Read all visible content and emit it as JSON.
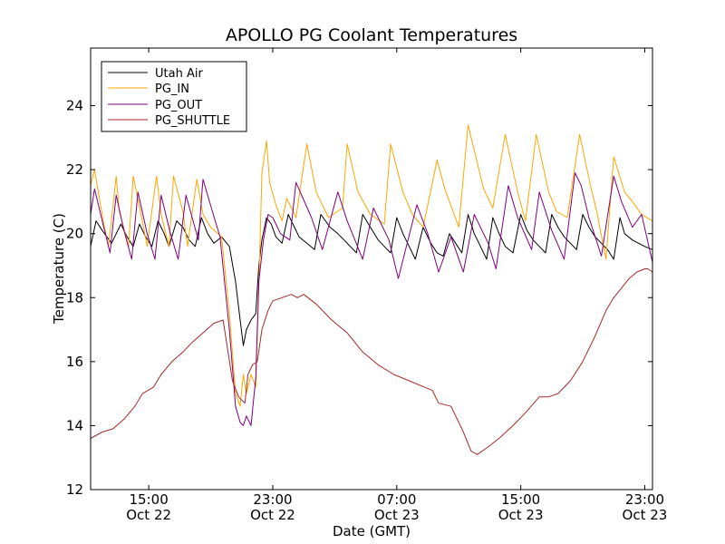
{
  "chart_data": {
    "type": "line",
    "title": "APOLLO PG Coolant Temperatures",
    "xlabel": "Date (GMT)",
    "ylabel": "Temperature (C)",
    "xlim": [
      11.25,
      47.5
    ],
    "ylim": [
      12,
      25.8
    ],
    "x_unit": "hours since 2012-10-22 00:00 GMT",
    "yticks": [
      12,
      14,
      16,
      18,
      20,
      22,
      24
    ],
    "xticks": [
      {
        "x": 15,
        "line1": "15:00",
        "line2": "Oct 22"
      },
      {
        "x": 23,
        "line1": "23:00",
        "line2": "Oct 22"
      },
      {
        "x": 31,
        "line1": "07:00",
        "line2": "Oct 23"
      },
      {
        "x": 39,
        "line1": "15:00",
        "line2": "Oct 23"
      },
      {
        "x": 47,
        "line1": "23:00",
        "line2": "Oct 23"
      }
    ],
    "legend_position": "top-left",
    "series": [
      {
        "name": "Utah Air",
        "color": "#000000",
        "x": [
          11.25,
          11.6,
          12.0,
          12.6,
          13.2,
          13.6,
          14.0,
          14.4,
          14.8,
          15.2,
          15.6,
          16.0,
          16.3,
          16.8,
          17.2,
          17.6,
          18.0,
          18.4,
          18.8,
          19.2,
          19.7,
          20.2,
          20.6,
          20.9,
          21.1,
          21.3,
          21.6,
          21.9,
          22.1,
          22.3,
          22.6,
          22.9,
          23.2,
          23.6,
          24.0,
          24.4,
          24.7,
          25.2,
          25.7,
          26.1,
          26.7,
          27.2,
          27.6,
          28.0,
          28.4,
          28.8,
          29.3,
          29.8,
          30.2,
          30.6,
          31.0,
          31.4,
          31.8,
          32.2,
          32.7,
          33.2,
          33.6,
          34.0,
          34.4,
          34.8,
          35.2,
          35.6,
          36.0,
          36.4,
          36.8,
          37.2,
          37.6,
          38.0,
          38.5,
          39.0,
          39.4,
          39.8,
          40.2,
          40.6,
          41.0,
          41.4,
          41.8,
          42.2,
          42.6,
          43.0,
          43.4,
          43.8,
          44.2,
          44.6,
          45.0,
          45.4,
          45.7,
          46.2,
          46.6,
          47.0,
          47.5
        ],
        "y": [
          19.6,
          20.4,
          20.1,
          19.7,
          20.3,
          19.9,
          19.6,
          20.3,
          19.9,
          19.6,
          20.4,
          20.0,
          19.6,
          20.4,
          20.2,
          19.8,
          19.6,
          20.5,
          20.0,
          19.7,
          19.9,
          19.6,
          18.5,
          17.3,
          16.5,
          17.0,
          17.3,
          17.5,
          19.0,
          19.8,
          20.5,
          20.3,
          19.9,
          19.7,
          20.6,
          20.2,
          19.9,
          19.7,
          19.5,
          20.6,
          20.2,
          20.0,
          19.8,
          19.6,
          19.4,
          20.6,
          20.2,
          19.8,
          19.6,
          19.4,
          20.5,
          20.0,
          19.6,
          19.2,
          20.2,
          19.7,
          19.4,
          19.3,
          20.0,
          19.7,
          19.4,
          20.6,
          20.0,
          19.6,
          19.2,
          20.5,
          20.0,
          19.6,
          19.4,
          20.6,
          20.1,
          19.8,
          19.6,
          19.4,
          20.6,
          20.2,
          19.9,
          19.7,
          19.5,
          20.6,
          20.2,
          19.9,
          19.7,
          19.5,
          19.2,
          20.5,
          20.0,
          19.8,
          19.7,
          19.6,
          19.5
        ]
      },
      {
        "name": "PG_IN",
        "color": "#ffa500",
        "x": [
          11.25,
          11.5,
          12.1,
          12.4,
          12.9,
          13.1,
          13.7,
          14.0,
          14.5,
          14.9,
          15.5,
          15.8,
          16.3,
          16.6,
          17.2,
          17.5,
          18.1,
          18.5,
          19.0,
          19.7,
          20.2,
          20.6,
          20.9,
          21.1,
          21.3,
          21.6,
          21.9,
          22.1,
          22.3,
          22.6,
          22.8,
          23.2,
          23.6,
          23.9,
          24.5,
          25.2,
          25.8,
          26.6,
          27.5,
          27.8,
          28.5,
          29.3,
          30.2,
          30.6,
          31.4,
          32.0,
          32.7,
          33.6,
          34.1,
          35.0,
          35.6,
          36.6,
          37.2,
          38.0,
          38.8,
          39.3,
          40.0,
          40.8,
          41.3,
          42.0,
          42.8,
          43.5,
          43.9,
          44.5,
          45.0,
          45.7,
          46.2,
          46.8,
          47.5
        ],
        "y": [
          21.5,
          22.0,
          20.3,
          19.6,
          21.8,
          20.7,
          19.6,
          21.8,
          20.6,
          19.6,
          21.8,
          20.6,
          19.6,
          21.8,
          20.7,
          19.6,
          21.7,
          20.6,
          20.2,
          19.9,
          17.5,
          15.0,
          14.6,
          15.6,
          15.0,
          15.6,
          15.2,
          18.3,
          21.9,
          22.9,
          21.6,
          20.9,
          20.4,
          21.1,
          20.5,
          22.8,
          21.3,
          20.5,
          20.8,
          22.8,
          21.3,
          20.6,
          20.3,
          22.8,
          21.3,
          20.6,
          20.2,
          22.3,
          21.4,
          20.2,
          23.4,
          21.4,
          20.8,
          23.1,
          21.3,
          20.4,
          23.1,
          21.3,
          20.7,
          20.5,
          23.1,
          21.5,
          20.7,
          19.2,
          22.4,
          21.3,
          21.0,
          20.6,
          20.4
        ]
      },
      {
        "name": "PG_OUT",
        "color": "#800080",
        "x": [
          11.25,
          11.5,
          12.1,
          12.5,
          12.9,
          13.4,
          13.9,
          14.3,
          14.9,
          15.4,
          15.8,
          16.4,
          16.9,
          17.4,
          18.2,
          18.5,
          19.1,
          19.6,
          20.2,
          20.6,
          20.9,
          21.1,
          21.3,
          21.6,
          21.9,
          22.1,
          22.4,
          22.7,
          23.0,
          23.5,
          24.1,
          24.5,
          25.5,
          26.2,
          27.2,
          27.8,
          28.8,
          29.5,
          30.5,
          31.1,
          32.3,
          33.0,
          33.7,
          34.5,
          35.3,
          36.0,
          36.9,
          37.4,
          38.2,
          38.8,
          39.7,
          40.2,
          41.0,
          41.8,
          42.5,
          42.9,
          43.4,
          44.2,
          45.0,
          45.5,
          46.2,
          46.8,
          47.5
        ],
        "y": [
          20.6,
          21.4,
          20.2,
          19.4,
          21.2,
          20.1,
          19.2,
          21.3,
          20.0,
          19.2,
          21.2,
          20.0,
          19.2,
          21.2,
          19.8,
          21.7,
          20.7,
          19.9,
          17.0,
          14.6,
          14.1,
          14.0,
          14.3,
          14.0,
          15.5,
          18.5,
          19.8,
          20.6,
          20.5,
          20.0,
          19.8,
          21.6,
          20.5,
          19.5,
          21.3,
          20.4,
          19.2,
          20.8,
          19.8,
          18.6,
          20.9,
          20.0,
          18.8,
          19.9,
          18.8,
          20.6,
          19.7,
          18.9,
          21.5,
          20.5,
          19.5,
          21.3,
          20.1,
          19.2,
          21.9,
          21.5,
          20.5,
          19.3,
          21.8,
          21.0,
          20.2,
          20.6,
          19.1
        ]
      },
      {
        "name": "PG_SHUTTLE",
        "color": "#a52a2a",
        "x": [
          11.25,
          12.0,
          12.7,
          13.4,
          14.1,
          14.6,
          15.3,
          15.8,
          16.5,
          17.2,
          17.8,
          18.5,
          19.2,
          19.8,
          20.4,
          20.8,
          21.0,
          21.2,
          21.4,
          21.7,
          22.0,
          22.3,
          22.7,
          23.0,
          23.6,
          24.2,
          24.6,
          25.0,
          25.8,
          26.8,
          27.8,
          28.8,
          29.8,
          30.8,
          31.8,
          32.8,
          33.3,
          33.7,
          34.5,
          35.0,
          35.3,
          35.8,
          36.2,
          36.8,
          37.6,
          38.5,
          39.3,
          40.2,
          40.8,
          41.4,
          42.2,
          43.0,
          43.8,
          44.5,
          45.0,
          45.5,
          46.0,
          46.5,
          47.0,
          47.2,
          47.5
        ],
        "y": [
          13.6,
          13.8,
          13.9,
          14.2,
          14.6,
          15.0,
          15.2,
          15.6,
          16.0,
          16.3,
          16.6,
          16.9,
          17.2,
          17.3,
          15.4,
          14.9,
          14.8,
          14.7,
          15.6,
          15.9,
          16.0,
          17.0,
          17.6,
          17.9,
          18.0,
          18.1,
          18.0,
          18.1,
          17.8,
          17.3,
          16.9,
          16.3,
          15.9,
          15.6,
          15.4,
          15.2,
          15.1,
          14.7,
          14.6,
          14.1,
          13.8,
          13.2,
          13.1,
          13.3,
          13.6,
          14.0,
          14.4,
          14.9,
          14.9,
          15.0,
          15.4,
          16.0,
          16.8,
          17.6,
          18.0,
          18.3,
          18.6,
          18.8,
          18.9,
          18.9,
          18.8
        ]
      }
    ]
  }
}
